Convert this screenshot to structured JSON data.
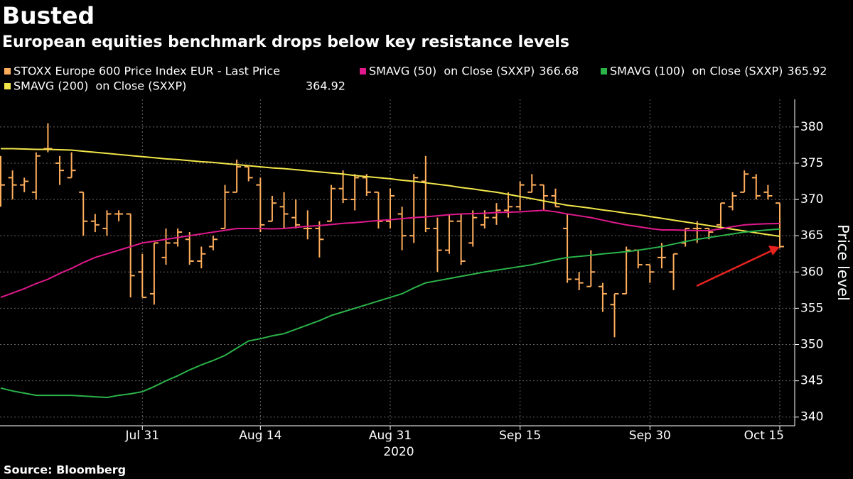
{
  "chart_data": {
    "type": "ohlc",
    "title": "Busted",
    "subtitle": "European equities benchmark drops below key resistance levels",
    "y_label": "Price level",
    "source": "Source: Bloomberg",
    "x_axis_year": "2020",
    "categories": [
      null,
      null,
      null,
      null,
      null,
      null,
      null,
      null,
      null,
      null,
      null,
      null,
      "Jul 31",
      null,
      null,
      null,
      null,
      null,
      null,
      null,
      null,
      null,
      "Aug 14",
      null,
      null,
      null,
      null,
      null,
      null,
      null,
      null,
      null,
      null,
      "Aug 31",
      null,
      null,
      null,
      null,
      null,
      null,
      null,
      null,
      null,
      null,
      "Sep 15",
      null,
      null,
      null,
      null,
      null,
      null,
      null,
      null,
      null,
      null,
      "Sep 30",
      null,
      null,
      null,
      null,
      null,
      null,
      null,
      null,
      null,
      null,
      "Oct 15"
    ],
    "ylim": [
      338.8,
      383.8
    ],
    "yticks": [
      340,
      345,
      350,
      355,
      360,
      365,
      370,
      375,
      380
    ],
    "grid": true,
    "series": [
      {
        "name": "STOXX Europe 600 Price Index EUR - Last Price",
        "type": "ohlc",
        "color": "#ffae5c",
        "open": [
          375,
          373,
          372,
          371,
          377,
          375,
          373,
          371,
          367,
          366,
          368,
          368,
          360,
          357,
          362,
          364,
          364.5,
          361.5,
          363.5,
          366,
          371,
          374.5,
          372,
          367,
          369,
          367.5,
          366,
          366,
          367,
          371.5,
          370,
          373,
          371,
          367,
          368,
          365,
          372.5,
          366,
          363,
          367,
          364,
          366.5,
          367.5,
          368.5,
          369,
          371,
          372,
          370.5,
          366,
          359,
          358,
          358,
          355.5,
          357,
          363,
          361,
          362,
          360,
          364,
          366,
          366,
          366.5,
          369,
          371,
          373,
          371,
          369.5
        ],
        "high": [
          376,
          374,
          373,
          376.5,
          380.5,
          376,
          376.5,
          371,
          368,
          368.5,
          368.5,
          368,
          362.5,
          364,
          366,
          366,
          365.5,
          363.5,
          365,
          372,
          375.5,
          374.5,
          373,
          370.5,
          371,
          370,
          368.5,
          367,
          372,
          374,
          373.5,
          373.5,
          371,
          371.5,
          369,
          373.5,
          376,
          367.5,
          368,
          368,
          368.5,
          368.5,
          369.5,
          371,
          372.5,
          373.5,
          372,
          371.5,
          368,
          360,
          363,
          358.5,
          357,
          363.5,
          363,
          361,
          364,
          362.5,
          366,
          367,
          366,
          369.5,
          371,
          374,
          373.5,
          372,
          369.5
        ],
        "low": [
          369,
          370,
          371,
          370,
          376.5,
          372,
          373,
          365,
          365.5,
          365,
          367,
          356.5,
          356.5,
          355.5,
          361,
          363.5,
          361,
          360.5,
          363,
          366,
          371,
          372.5,
          365.5,
          367,
          366,
          366,
          364.5,
          362,
          367,
          369.5,
          368.5,
          370.5,
          366,
          366,
          363,
          364,
          365.5,
          360,
          362.5,
          361,
          363.5,
          366,
          366.5,
          367.5,
          368.5,
          371,
          368.5,
          369,
          358.5,
          357.5,
          358,
          354.5,
          351,
          357,
          360.5,
          358.5,
          360.5,
          357.5,
          363.5,
          364,
          364.5,
          366,
          368.5,
          371,
          370,
          370,
          363.3
        ],
        "close": [
          372,
          372,
          372.5,
          376,
          377,
          374,
          374,
          367,
          366.5,
          368,
          368,
          359.5,
          356.5,
          364,
          364,
          365.5,
          361.5,
          362.5,
          364.5,
          371,
          374.5,
          373,
          366.5,
          369.5,
          368,
          366.5,
          366,
          364.5,
          371.5,
          370,
          373,
          371,
          367,
          370.5,
          365,
          373,
          366,
          363,
          367,
          361.5,
          367.5,
          367.5,
          368.5,
          369,
          372,
          372,
          370.5,
          369,
          359,
          358.5,
          360,
          357,
          357,
          363,
          361,
          360,
          362,
          362.5,
          366,
          366,
          365.5,
          369.5,
          370.5,
          373.5,
          370.5,
          370.5,
          363.5
        ]
      },
      {
        "name": "SMAVG (50)  on Close (SXXP)",
        "type": "line",
        "color": "#e0198c",
        "last_value": 366.68,
        "values": [
          356.5,
          357.1,
          357.7,
          358.4,
          359.0,
          359.8,
          360.5,
          361.3,
          362.0,
          362.5,
          363.0,
          363.5,
          364.0,
          364.25,
          364.5,
          364.75,
          365.0,
          365.25,
          365.5,
          365.75,
          366.0,
          366.0,
          366.0,
          365.95,
          366.0,
          366.15,
          366.3,
          366.4,
          366.55,
          366.7,
          366.8,
          366.95,
          367.1,
          367.2,
          367.35,
          367.5,
          367.6,
          367.75,
          367.9,
          368.0,
          368.05,
          368.1,
          368.2,
          368.25,
          368.3,
          368.4,
          368.5,
          368.3,
          368.0,
          367.75,
          367.5,
          367.15,
          366.8,
          366.5,
          366.25,
          366.0,
          365.8,
          365.8,
          365.75,
          365.7,
          365.7,
          365.95,
          366.25,
          366.5,
          366.6,
          366.65,
          366.68
        ]
      },
      {
        "name": "SMAVG (100)  on Close (SXXP)",
        "type": "line",
        "color": "#2bb34a",
        "last_value": 365.92,
        "values": [
          344.0,
          343.6,
          343.3,
          343.0,
          343.0,
          343.0,
          343.0,
          342.9,
          342.8,
          342.7,
          343.0,
          343.2,
          343.5,
          344.2,
          345.0,
          345.7,
          346.5,
          347.2,
          347.8,
          348.5,
          349.5,
          350.5,
          350.8,
          351.2,
          351.5,
          352.1,
          352.7,
          353.3,
          354.0,
          354.5,
          355.0,
          355.5,
          356.0,
          356.5,
          357.0,
          357.8,
          358.5,
          358.8,
          359.1,
          359.4,
          359.7,
          360.0,
          360.25,
          360.5,
          360.75,
          361.0,
          361.35,
          361.7,
          362.0,
          362.15,
          362.3,
          362.5,
          362.65,
          362.8,
          363.0,
          363.25,
          363.5,
          363.85,
          364.2,
          364.5,
          364.75,
          365.0,
          365.25,
          365.5,
          365.65,
          365.8,
          365.92
        ]
      },
      {
        "name": "SMAVG (200)  on Close (SXXP)",
        "type": "line",
        "color": "#f2e64a",
        "last_value": 364.92,
        "values": [
          377.0,
          377.0,
          376.95,
          376.9,
          376.9,
          376.85,
          376.8,
          376.65,
          376.5,
          376.35,
          376.2,
          376.05,
          375.9,
          375.75,
          375.6,
          375.5,
          375.35,
          375.2,
          375.1,
          374.95,
          374.8,
          374.65,
          374.5,
          374.35,
          374.25,
          374.1,
          373.95,
          373.8,
          373.65,
          373.5,
          373.3,
          373.15,
          373.0,
          372.85,
          372.65,
          372.5,
          372.3,
          372.1,
          371.9,
          371.65,
          371.45,
          371.2,
          371.0,
          370.7,
          370.4,
          370.1,
          369.8,
          369.5,
          369.2,
          369.0,
          368.8,
          368.55,
          368.35,
          368.1,
          367.9,
          367.65,
          367.4,
          367.15,
          366.9,
          366.65,
          366.4,
          366.15,
          365.9,
          365.65,
          365.4,
          365.15,
          364.92
        ]
      }
    ]
  }
}
